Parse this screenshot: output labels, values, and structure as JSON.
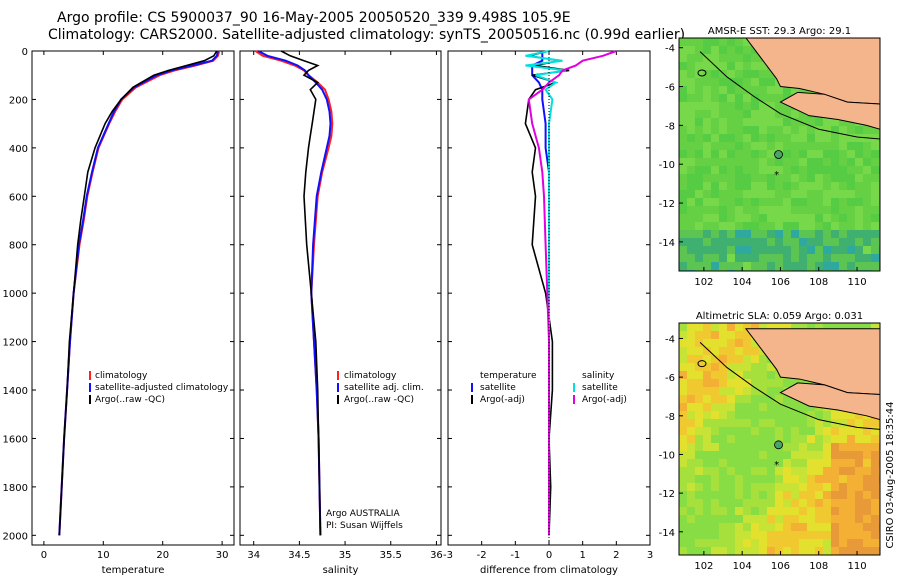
{
  "header": {
    "line1": "Argo profile: CS 5900037_90 16-May-2005 20050520_339 9.498S 105.9E",
    "line2": "Climatology: CARS2000. Satellite-adjusted climatology: synTS_20050516.nc (0.99d earlier)"
  },
  "side_label": "CSIRO 03-Aug-2005 18:35:44",
  "colors": {
    "climatology": "#ff2020",
    "satellite": "#1010ff",
    "argo": "#000000",
    "sal_sat": "#00e0e0",
    "sal_argo": "#e000e0",
    "land": "#f4b48c"
  },
  "chart_data": [
    {
      "type": "line",
      "panel": "temperature",
      "xlabel": "temperature",
      "ylabel": "",
      "xlim": [
        -2,
        32
      ],
      "ylim": [
        2040,
        0
      ],
      "xticks": [
        0,
        10,
        20,
        30
      ],
      "xtick_labels": [
        "0",
        "10",
        "20",
        "30"
      ],
      "yticks": [
        0,
        200,
        400,
        600,
        800,
        1000,
        1200,
        1400,
        1600,
        1800,
        2000
      ],
      "ytick_labels": [
        "0",
        "200",
        "400",
        "600",
        "800",
        "1000",
        "1200",
        "1400",
        "1600",
        "1800",
        "2000"
      ],
      "depth": [
        0,
        20,
        40,
        60,
        80,
        100,
        150,
        200,
        250,
        300,
        400,
        500,
        600,
        700,
        800,
        1000,
        1200,
        1400,
        1600,
        1800,
        2000
      ],
      "series": [
        {
          "name": "climatology",
          "values": [
            29.5,
            29.3,
            28.5,
            25.5,
            22.0,
            19.5,
            15.5,
            13.2,
            12.0,
            11.0,
            9.2,
            8.2,
            7.3,
            6.7,
            6.0,
            5.0,
            4.4,
            3.9,
            3.4,
            3.0,
            2.6
          ]
        },
        {
          "name": "satellite-adjusted climatology",
          "values": [
            29.3,
            29.1,
            28.3,
            25.0,
            21.5,
            19.0,
            15.2,
            13.0,
            11.8,
            10.9,
            9.1,
            8.1,
            7.2,
            6.6,
            5.9,
            5.0,
            4.4,
            3.9,
            3.4,
            3.0,
            2.6
          ]
        },
        {
          "name": "Argo(..raw -QC)",
          "values": [
            29.1,
            28.6,
            27.0,
            24.0,
            21.0,
            18.5,
            15.0,
            13.0,
            11.5,
            10.3,
            8.6,
            7.4,
            6.8,
            6.2,
            5.7,
            5.0,
            4.3,
            3.9,
            3.4,
            3.0,
            2.6
          ]
        }
      ],
      "legend": [
        "climatology",
        "satellite-adjusted climatology",
        "Argo(..raw -QC)"
      ]
    },
    {
      "type": "line",
      "panel": "salinity",
      "xlabel": "salinity",
      "xlim": [
        33.85,
        36.05
      ],
      "ylim": [
        2040,
        0
      ],
      "xticks": [
        34,
        34.5,
        35,
        35.5,
        36
      ],
      "xtick_labels": [
        "34",
        "34.5",
        "35",
        "35.5",
        "36"
      ],
      "depth": [
        0,
        20,
        40,
        60,
        80,
        100,
        130,
        160,
        200,
        250,
        300,
        350,
        400,
        500,
        600,
        800,
        1000,
        1200,
        1400,
        1600,
        1800,
        2000
      ],
      "series": [
        {
          "name": "climatology",
          "values": [
            34.02,
            34.1,
            34.3,
            34.45,
            34.55,
            34.6,
            34.7,
            34.78,
            34.82,
            34.85,
            34.86,
            34.85,
            34.82,
            34.75,
            34.7,
            34.66,
            34.63,
            34.66,
            34.69,
            34.71,
            34.72,
            34.73
          ]
        },
        {
          "name": "satellite adj. clim.",
          "values": [
            34.05,
            34.15,
            34.35,
            34.48,
            34.56,
            34.6,
            34.68,
            34.75,
            34.8,
            34.83,
            34.84,
            34.83,
            34.8,
            34.74,
            34.69,
            34.65,
            34.63,
            34.66,
            34.69,
            34.71,
            34.72,
            34.73
          ]
        },
        {
          "name": "Argo(..raw -QC)",
          "values": [
            34.3,
            34.4,
            34.55,
            34.7,
            34.6,
            34.55,
            34.7,
            34.62,
            34.68,
            34.66,
            34.64,
            34.62,
            34.6,
            34.57,
            34.55,
            34.58,
            34.63,
            34.68,
            34.7,
            34.71,
            34.72,
            34.73
          ]
        }
      ],
      "legend": [
        "climatology",
        "satellite adj. clim.",
        "Argo(..raw -QC)"
      ],
      "annotation": [
        "Argo AUSTRALIA",
        "PI: Susan Wijffels"
      ]
    },
    {
      "type": "line",
      "panel": "difference",
      "xlabel": "difference from climatology",
      "xlim": [
        -3,
        3
      ],
      "ylim": [
        2040,
        0
      ],
      "xticks": [
        -3,
        -2,
        -1,
        0,
        1,
        2,
        3
      ],
      "xtick_labels": [
        "-3",
        "-2",
        "-1",
        "0",
        "1",
        "2",
        "3"
      ],
      "depth": [
        0,
        20,
        40,
        60,
        80,
        100,
        130,
        160,
        200,
        300,
        400,
        500,
        600,
        800,
        1000,
        1200,
        1400,
        1600,
        1800,
        2000
      ],
      "series": [
        {
          "name": "temperature satellite",
          "values": [
            -0.2,
            -0.2,
            -0.2,
            -0.5,
            -0.5,
            -0.5,
            -0.3,
            -0.2,
            -0.2,
            -0.1,
            -0.1,
            0,
            0,
            0,
            0,
            0,
            0,
            0,
            0,
            0
          ]
        },
        {
          "name": "temperature Argo(-adj)",
          "values": [
            0,
            -0.6,
            0.3,
            -0.4,
            0.6,
            -0.5,
            0.2,
            -0.4,
            -0.6,
            -0.7,
            -0.4,
            -0.5,
            -0.4,
            -0.5,
            -0.1,
            0.1,
            0.1,
            0,
            0.05,
            0
          ]
        },
        {
          "name": "salinity satellite",
          "values": [
            0,
            -0.7,
            0.4,
            -0.7,
            0.5,
            -0.4,
            0.2,
            -0.1,
            0.1,
            0,
            0,
            0,
            0,
            0,
            0,
            0,
            0,
            0,
            0,
            0
          ]
        },
        {
          "name": "salinity Argo(-adj)",
          "values": [
            2.0,
            1.6,
            1.0,
            0.8,
            0.4,
            0.3,
            0,
            -0.2,
            -0.6,
            -0.5,
            -0.3,
            -0.2,
            -0.15,
            -0.1,
            -0.05,
            0,
            0,
            0,
            0,
            0
          ]
        }
      ],
      "legend_left": [
        "temperature",
        "satellite",
        "Argo(-adj)"
      ],
      "legend_right": [
        "salinity",
        "satellite",
        "Argo(-adj)"
      ]
    },
    {
      "type": "heatmap",
      "panel": "map-sst",
      "title": "AMSR-E SST: 29.3 Argo: 29.1",
      "xlim": [
        100.7,
        111.2
      ],
      "ylim": [
        -15.5,
        -3.5
      ],
      "xticks": [
        102,
        104,
        106,
        108,
        110
      ],
      "xtick_labels": [
        "102",
        "104",
        "106",
        "108",
        "110"
      ],
      "yticks": [
        -4,
        -6,
        -8,
        -10,
        -12,
        -14
      ],
      "ytick_labels": [
        "-4",
        "-6",
        "-8",
        "-10",
        "-12",
        "-14"
      ],
      "float_position": [
        105.9,
        -9.5
      ],
      "previous_position": [
        105.8,
        -10.4
      ]
    },
    {
      "type": "heatmap",
      "panel": "map-sla",
      "title": "Altimetric SLA: 0.059 Argo: 0.031",
      "xlim": [
        100.7,
        111.2
      ],
      "ylim": [
        -15.2,
        -3.2
      ],
      "xticks": [
        102,
        104,
        106,
        108,
        110
      ],
      "xtick_labels": [
        "102",
        "104",
        "106",
        "108",
        "110"
      ],
      "yticks": [
        -4,
        -6,
        -8,
        -10,
        -12,
        -14
      ],
      "ytick_labels": [
        "-4",
        "-6",
        "-8",
        "-10",
        "-12",
        "-14"
      ],
      "float_position": [
        105.9,
        -9.5
      ],
      "previous_position": [
        105.8,
        -10.4
      ]
    }
  ]
}
